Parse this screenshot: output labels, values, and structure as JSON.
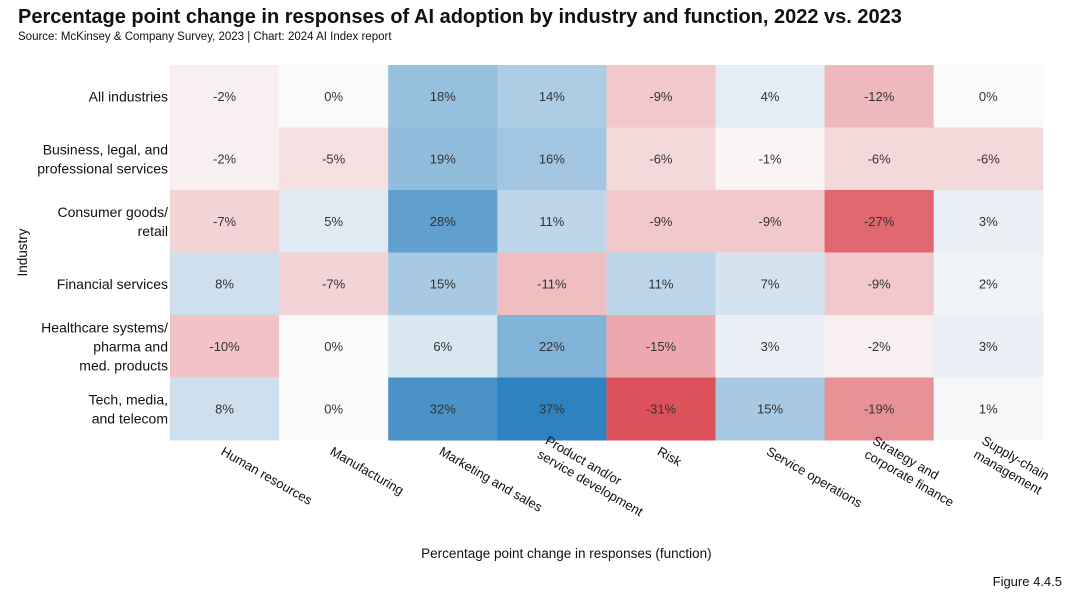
{
  "title": "Percentage point change in responses of AI adoption by industry and function, 2022 vs. 2023",
  "subtitle": "Source: McKinsey & Company Survey, 2023 | Chart: 2024 AI Index report",
  "figure_label": "Figure 4.4.5",
  "chart_data": {
    "type": "heatmap",
    "xlabel": "Percentage point change in responses (function)",
    "ylabel": "Industry",
    "columns": [
      [
        "Human resources"
      ],
      [
        "Manufacturing"
      ],
      [
        "Marketing and sales"
      ],
      [
        "Product and/or",
        "service development"
      ],
      [
        "Risk"
      ],
      [
        "Service operations"
      ],
      [
        "Strategy and",
        "corporate finance"
      ],
      [
        "Supply-chain",
        "management"
      ]
    ],
    "rows": [
      [
        "All industries"
      ],
      [
        "Business, legal, and",
        "professional services"
      ],
      [
        "Consumer goods/",
        "retail"
      ],
      [
        "Financial services"
      ],
      [
        "Healthcare systems/",
        "pharma and",
        "med. products"
      ],
      [
        "Tech, media,",
        "and telecom"
      ]
    ],
    "values": [
      [
        -2,
        0,
        18,
        14,
        -9,
        4,
        -12,
        0
      ],
      [
        -2,
        -5,
        19,
        16,
        -6,
        -1,
        -6,
        -6
      ],
      [
        -7,
        5,
        28,
        11,
        -9,
        -9,
        -27,
        3
      ],
      [
        8,
        -7,
        15,
        -11,
        11,
        7,
        -9,
        2
      ],
      [
        -10,
        0,
        6,
        22,
        -15,
        3,
        -2,
        3
      ],
      [
        8,
        0,
        32,
        37,
        -31,
        15,
        -19,
        1
      ]
    ],
    "value_suffix": "%",
    "color_scale": {
      "negative": "#d7303b",
      "neutral": "#fafafa",
      "positive": "#2f82c0",
      "abs_max": 37
    }
  }
}
